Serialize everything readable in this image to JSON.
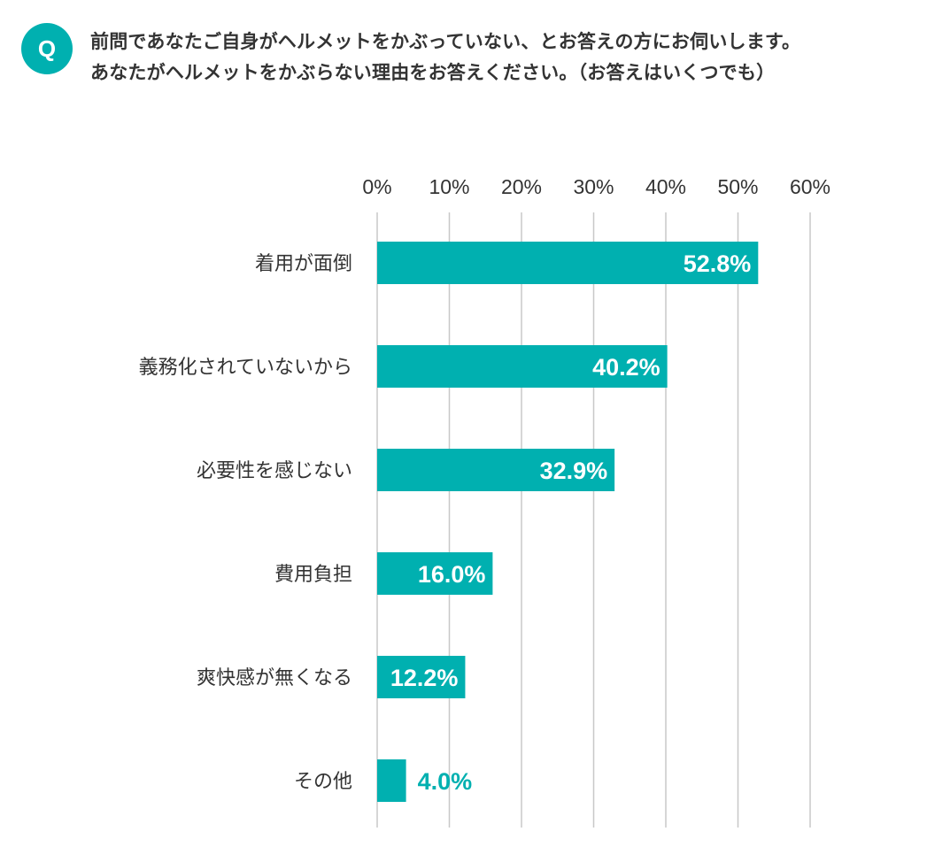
{
  "badge": {
    "label": "Q"
  },
  "question": {
    "line1": "前問であなたご自身がヘルメットをかぶっていない、とお答えの方にお伺いします。",
    "line2": "あなたがヘルメットをかぶらない理由をお答えください。（お答えはいくつでも）"
  },
  "colors": {
    "bar": "#00b0b0",
    "badge": "#00b0b0",
    "grid": "#c8c8c8",
    "label_inside": "#ffffff",
    "label_outside": "#00b0b0"
  },
  "chart_data": {
    "type": "bar",
    "orientation": "horizontal",
    "title": "",
    "xlabel": "",
    "ylabel": "",
    "categories": [
      "着用が面倒",
      "義務化されていないから",
      "必要性を感じない",
      "費用負担",
      "爽快感が無くなる",
      "その他"
    ],
    "values": [
      52.8,
      40.2,
      32.9,
      16.0,
      12.2,
      4.0
    ],
    "value_labels": [
      "52.8%",
      "40.2%",
      "32.9%",
      "16.0%",
      "12.2%",
      "4.0%"
    ],
    "xlim": [
      0,
      60
    ],
    "ticks": [
      0,
      10,
      20,
      30,
      40,
      50,
      60
    ],
    "tick_labels": [
      "0%",
      "10%",
      "20%",
      "30%",
      "40%",
      "50%",
      "60%"
    ],
    "axis_position": "top",
    "grid": true
  }
}
